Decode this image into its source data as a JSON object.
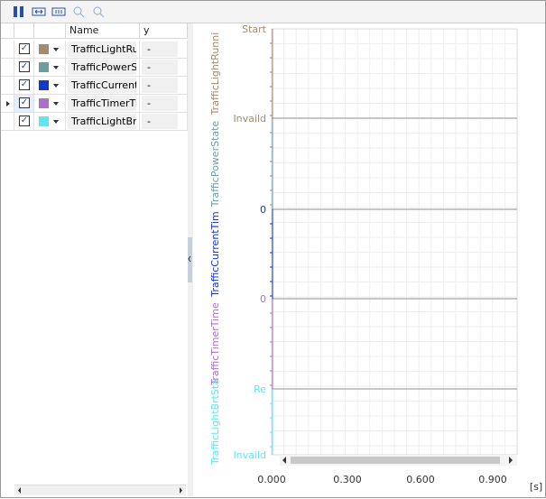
{
  "table": {
    "headers": [
      "Name",
      "y"
    ],
    "rows": [
      {
        "checked": true,
        "color": "#a58a6c",
        "name": "TrafficLightRur",
        "y": "-"
      },
      {
        "checked": true,
        "color": "#6a9fa0",
        "name": "TrafficPowerSt",
        "y": "-"
      },
      {
        "checked": true,
        "color": "#1438c8",
        "name": "TrafficCurrentT",
        "y": "-"
      },
      {
        "checked": true,
        "color": "#ae6fc9",
        "name": "TrafficTimerTir",
        "y": "-"
      },
      {
        "checked": true,
        "color": "#5ee6f2",
        "name": "TrafficLightBrtS",
        "y": "-"
      }
    ]
  },
  "plot": {
    "signal_labels": [
      {
        "text": "TrafficLightRunni",
        "color": "#a58a6c"
      },
      {
        "text": "TrafficPowerState",
        "color": "#6a9fa0"
      },
      {
        "text": "TrafficCurrentTim",
        "color": "#1438c8"
      },
      {
        "text": "TrafficTimerTime",
        "color": "#ae6fc9"
      },
      {
        "text": "TrafficLightBrtSta",
        "color": "#5ee6f2"
      }
    ],
    "y_labels": [
      {
        "text": "Start",
        "color": "#a58a6c"
      },
      {
        "text": "Invaild",
        "color": "#a58a6c"
      },
      {
        "text": "0",
        "color": "#1438c8"
      },
      {
        "text": "0",
        "color": "#ae6fc9"
      },
      {
        "text": "Re",
        "color": "#5ee6f2"
      },
      {
        "text": "Invaild",
        "color": "#5ee6f2"
      }
    ],
    "x_ticks": [
      "0.000",
      "0.300",
      "0.600",
      "0.900"
    ],
    "x_unit": "[s]"
  }
}
